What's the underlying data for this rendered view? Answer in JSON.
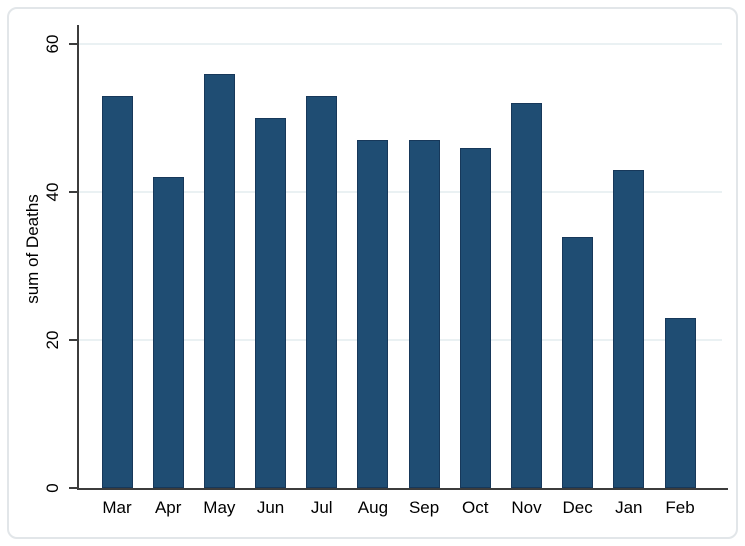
{
  "figure": {
    "background": "#ffffff",
    "frame_border_color": "#e2e6e9"
  },
  "chart_data": {
    "type": "bar",
    "title": "",
    "categories": [
      "Mar",
      "Apr",
      "May",
      "Jun",
      "Jul",
      "Aug",
      "Sep",
      "Oct",
      "Nov",
      "Dec",
      "Jan",
      "Feb"
    ],
    "values": [
      53,
      42,
      56,
      50,
      53,
      47,
      47,
      46,
      52,
      34,
      43,
      23
    ],
    "xlabel": "",
    "ylabel": "sum of Deaths",
    "ylim": [
      0,
      62.6
    ],
    "yticks": [
      0,
      20,
      40,
      60
    ],
    "grid": "horizontal",
    "legend": "none",
    "colors": {
      "bar_fill": "#1f4d73",
      "bar_outline": "#17385a",
      "gridline": "#eaf1f3",
      "axis": "#3c3c3c",
      "text": "#000000"
    }
  }
}
